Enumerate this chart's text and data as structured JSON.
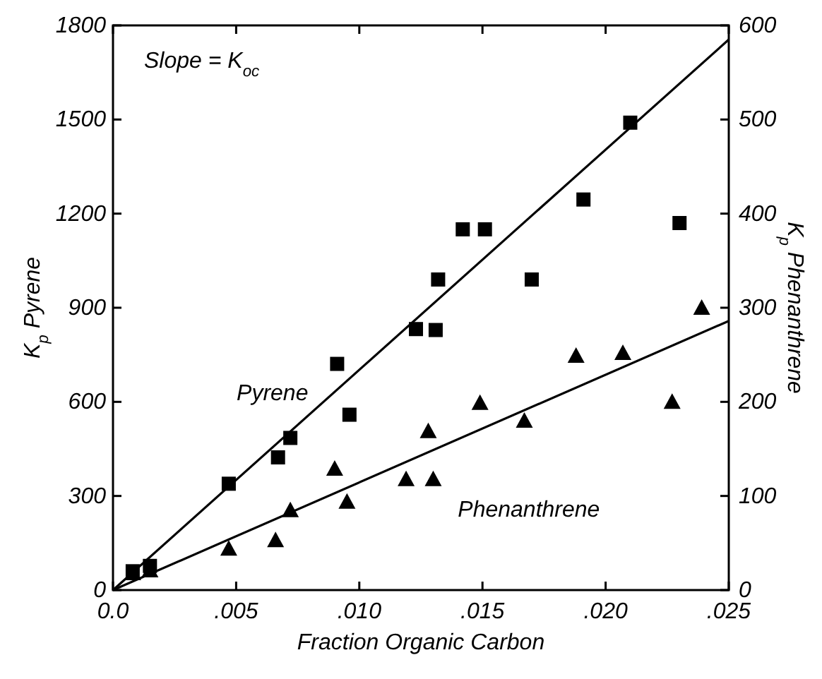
{
  "chart_data": {
    "type": "scatter",
    "xlabel": "Fraction Organic Carbon",
    "ylabel": "K$_{p}$ Pyrene",
    "y2label": "K$_{p}$ Phenanthrene",
    "annotations": [
      "Slope = K$_{oc}$"
    ],
    "xlim": [
      0,
      0.025
    ],
    "xticks": [
      {
        "value": 0,
        "label": "0.0"
      },
      {
        "value": 0.005,
        "label": ".005"
      },
      {
        "value": 0.01,
        "label": ".010"
      },
      {
        "value": 0.015,
        "label": ".015"
      },
      {
        "value": 0.02,
        "label": ".020"
      },
      {
        "value": 0.025,
        "label": ".025"
      }
    ],
    "ylim": [
      0,
      1800
    ],
    "yticks": [
      0,
      300,
      600,
      900,
      1200,
      1500,
      1800
    ],
    "y2lim": [
      0,
      600
    ],
    "y2ticks": [
      0,
      100,
      200,
      300,
      400,
      500,
      600
    ],
    "grid": false,
    "series": [
      {
        "name": "Pyrene",
        "type": "line",
        "color": "#000000",
        "marker": "none",
        "x": [
          0,
          0.025
        ],
        "values": [
          0,
          1755
        ]
      },
      {
        "color": "#000000",
        "marker": "square",
        "x": [
          0.0008,
          0.0015,
          0.0047,
          0.0067,
          0.0072,
          0.0091,
          0.0096,
          0.0123,
          0.0131,
          0.0132,
          0.0142,
          0.0151,
          0.017,
          0.0191,
          0.021,
          0.023
        ],
        "values": [
          60,
          77,
          339,
          423,
          485,
          721,
          559,
          832,
          829,
          990,
          1150,
          1150,
          990,
          1245,
          1490,
          1170
        ]
      },
      {
        "name": "Phenanthrene",
        "type": "line",
        "axis": "y2",
        "color": "#000000",
        "marker": "none",
        "x": [
          0,
          0.025
        ],
        "values": [
          0,
          286
        ]
      },
      {
        "axis": "y2",
        "color": "#000000",
        "marker": "triangle",
        "x": [
          0.0008,
          0.0015,
          0.0047,
          0.0066,
          0.0072,
          0.009,
          0.0095,
          0.0119,
          0.013,
          0.0128,
          0.0149,
          0.0167,
          0.0188,
          0.0207,
          0.0227,
          0.0239
        ],
        "values": [
          18,
          21,
          44,
          53,
          85,
          129,
          94,
          118,
          118,
          169,
          199,
          180,
          249,
          252,
          200,
          300
        ]
      }
    ]
  }
}
